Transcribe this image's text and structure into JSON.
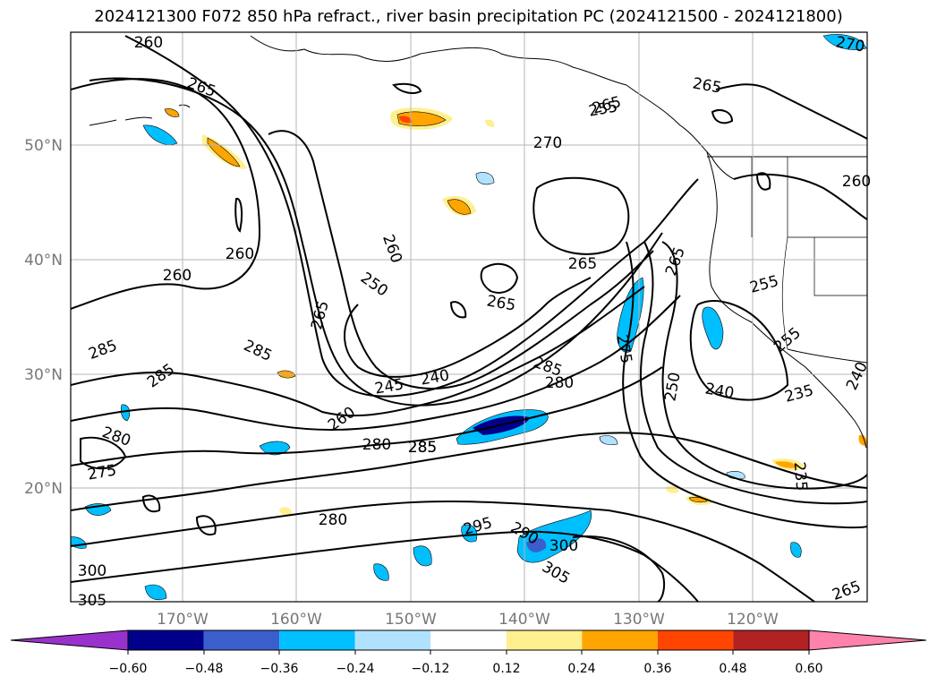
{
  "title": "2024121300 F072 850 hPa refract., river basin precipitation PC (2024121500 - 2024121800)",
  "lat_labels": [
    "50°N",
    "40°N",
    "30°N",
    "20°N"
  ],
  "lon_labels": [
    "170°W",
    "160°W",
    "150°W",
    "140°W",
    "130°W",
    "120°W"
  ],
  "contour_labels": [
    "260",
    "265",
    "265",
    "265",
    "260",
    "270",
    "265",
    "260",
    "260",
    "265",
    "265",
    "250",
    "265",
    "255",
    "255",
    "285",
    "285",
    "285",
    "285",
    "275",
    "245",
    "240",
    "285",
    "280",
    "240",
    "250",
    "235",
    "240",
    "260",
    "280",
    "285",
    "280",
    "275",
    "280",
    "300",
    "305",
    "295",
    "290",
    "300",
    "305",
    "235",
    "265",
    "270",
    "255",
    "260"
  ],
  "colorbar": {
    "ticks": [
      "−0.60",
      "−0.48",
      "−0.36",
      "−0.24",
      "−0.12",
      "0.12",
      "0.24",
      "0.36",
      "0.48",
      "0.60"
    ],
    "colors": [
      "#9932cc",
      "#00008b",
      "#3a5fcd",
      "#00bfff",
      "#b0e2ff",
      "#ffffff",
      "#fff08f",
      "#ffa500",
      "#ff4500",
      "#b22222",
      "#ff82ab"
    ]
  },
  "shading": {
    "negative": [
      "#b0e2ff",
      "#00bfff",
      "#3a5fcd",
      "#00008b"
    ],
    "positive": [
      "#fff08f",
      "#ffa500",
      "#ff4500"
    ]
  }
}
